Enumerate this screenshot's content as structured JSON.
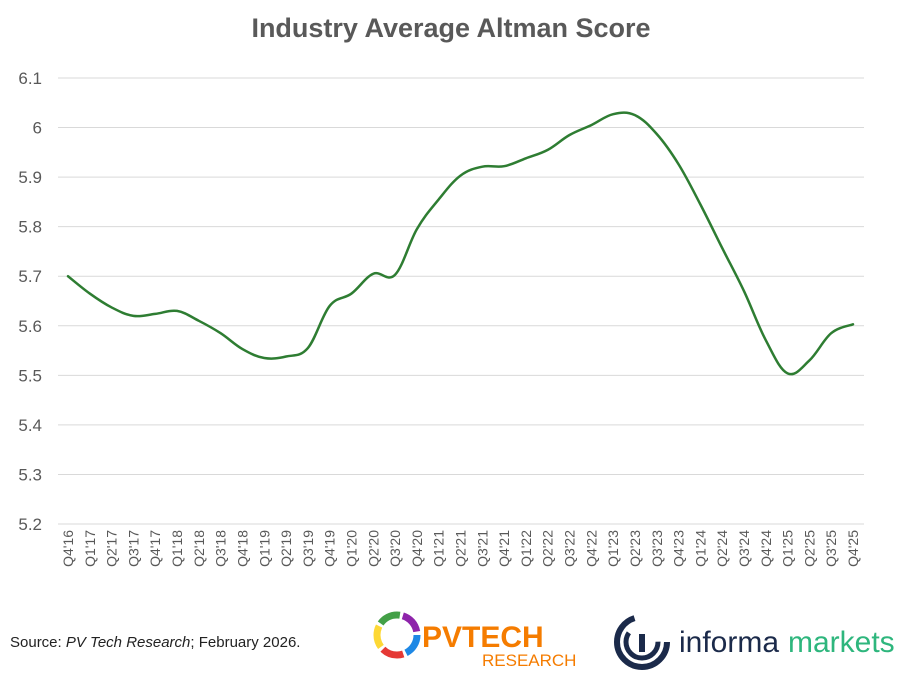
{
  "chart_data": {
    "type": "line",
    "title": "Industry Average Altman Score",
    "categories": [
      "Q4'16",
      "Q1'17",
      "Q2'17",
      "Q3'17",
      "Q4'17",
      "Q1'18",
      "Q2'18",
      "Q3'18",
      "Q4'18",
      "Q1'19",
      "Q2'19",
      "Q3'19",
      "Q4'19",
      "Q1'20",
      "Q2'20",
      "Q3'20",
      "Q4'20",
      "Q1'21",
      "Q2'21",
      "Q3'21",
      "Q4'21",
      "Q1'22",
      "Q2'22",
      "Q3'22",
      "Q4'22",
      "Q1'23",
      "Q2'23",
      "Q3'23",
      "Q4'23",
      "Q1'24",
      "Q2'24",
      "Q3'24",
      "Q4'24",
      "Q1'25",
      "Q2'25",
      "Q3'25",
      "Q4'25"
    ],
    "series": [
      {
        "values": [
          5.7,
          5.665,
          5.637,
          5.62,
          5.624,
          5.63,
          5.61,
          5.585,
          5.553,
          5.535,
          5.538,
          5.555,
          5.64,
          5.665,
          5.705,
          5.703,
          5.795,
          5.855,
          5.903,
          5.921,
          5.922,
          5.938,
          5.955,
          5.985,
          6.005,
          6.027,
          6.025,
          5.987,
          5.926,
          5.845,
          5.757,
          5.67,
          5.571,
          5.504,
          5.53,
          5.585,
          5.603
        ],
        "color": "#2e7d32"
      }
    ],
    "y_ticks": [
      "5.2",
      "5.3",
      "5.4",
      "5.5",
      "5.6",
      "5.7",
      "5.8",
      "5.9",
      "6",
      "6.1"
    ],
    "ylim": [
      5.2,
      6.1
    ],
    "grid": true
  },
  "footer": {
    "source_prefix": "Source: ",
    "source_italic": "PV Tech Research",
    "source_suffix": "; February 2026.",
    "pv_logo_main": "PVTECH",
    "pv_logo_sub": "RESEARCH",
    "informa_word1": "informa",
    "informa_word2": "markets"
  }
}
